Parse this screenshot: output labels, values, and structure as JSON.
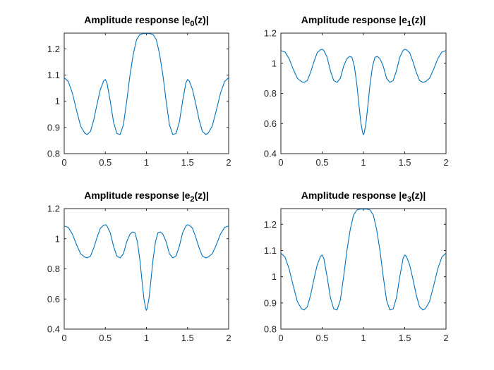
{
  "figure": {
    "line_color": "#0072BD",
    "axes_color": "#262626"
  },
  "chart_data": [
    {
      "type": "line",
      "title": "Amplitude response |e",
      "title_sub": "0",
      "title_suffix": "(z)|",
      "xlim": [
        0,
        2
      ],
      "ylim": [
        0.8,
        1.26
      ],
      "xticks": [
        "0",
        "0.5",
        "1",
        "1.5",
        "2"
      ],
      "xtick_values": [
        0,
        0.5,
        1,
        1.5,
        2
      ],
      "yticks": [
        "0.8",
        "0.9",
        "1",
        "1.1",
        "1.2"
      ],
      "ytick_values": [
        0.8,
        0.9,
        1.0,
        1.1,
        1.2
      ],
      "series": [
        {
          "x": [
            0,
            0.05,
            0.1,
            0.15,
            0.2,
            0.25,
            0.28,
            0.32,
            0.36,
            0.4,
            0.44,
            0.48,
            0.5,
            0.52,
            0.56,
            0.6,
            0.64,
            0.68,
            0.72,
            0.76,
            0.8,
            0.84,
            0.88,
            0.92,
            0.96,
            1.0,
            1.04,
            1.08,
            1.12,
            1.16,
            1.2,
            1.24,
            1.28,
            1.32,
            1.36,
            1.4,
            1.44,
            1.48,
            1.5,
            1.52,
            1.56,
            1.6,
            1.64,
            1.68,
            1.72,
            1.75,
            1.8,
            1.85,
            1.9,
            1.95,
            2.0
          ],
          "y": [
            1.09,
            1.075,
            1.03,
            0.965,
            0.905,
            0.878,
            0.873,
            0.885,
            0.93,
            0.99,
            1.045,
            1.078,
            1.083,
            1.07,
            1.0,
            0.92,
            0.877,
            0.873,
            0.91,
            1.0,
            1.1,
            1.18,
            1.235,
            1.255,
            1.258,
            1.258,
            1.258,
            1.255,
            1.235,
            1.18,
            1.1,
            1.0,
            0.91,
            0.873,
            0.877,
            0.92,
            1.0,
            1.07,
            1.083,
            1.078,
            1.045,
            0.99,
            0.93,
            0.885,
            0.873,
            0.878,
            0.905,
            0.965,
            1.03,
            1.075,
            1.09
          ]
        }
      ]
    },
    {
      "type": "line",
      "title": "Amplitude response |e",
      "title_sub": "1",
      "title_suffix": "(z)|",
      "xlim": [
        0,
        2
      ],
      "ylim": [
        0.4,
        1.2
      ],
      "xticks": [
        "0",
        "0.5",
        "1",
        "1.5",
        "2"
      ],
      "xtick_values": [
        0,
        0.5,
        1,
        1.5,
        2
      ],
      "yticks": [
        "0.4",
        "0.6",
        "0.8",
        "1",
        "1.2"
      ],
      "ytick_values": [
        0.4,
        0.6,
        0.8,
        1.0,
        1.2
      ],
      "series": [
        {
          "x": [
            0,
            0.05,
            0.1,
            0.15,
            0.2,
            0.25,
            0.28,
            0.32,
            0.36,
            0.4,
            0.44,
            0.48,
            0.5,
            0.52,
            0.56,
            0.6,
            0.64,
            0.68,
            0.72,
            0.76,
            0.8,
            0.83,
            0.86,
            0.89,
            0.92,
            0.95,
            0.97,
            0.99,
            1.0,
            1.01,
            1.03,
            1.05,
            1.08,
            1.11,
            1.14,
            1.17,
            1.2,
            1.24,
            1.28,
            1.32,
            1.36,
            1.4,
            1.44,
            1.48,
            1.5,
            1.52,
            1.56,
            1.6,
            1.64,
            1.68,
            1.72,
            1.75,
            1.8,
            1.85,
            1.9,
            1.95,
            2.0
          ],
          "y": [
            1.085,
            1.075,
            1.03,
            0.96,
            0.9,
            0.878,
            0.873,
            0.885,
            0.94,
            1.01,
            1.07,
            1.09,
            1.093,
            1.085,
            1.04,
            0.95,
            0.885,
            0.873,
            0.9,
            0.98,
            1.03,
            1.045,
            1.04,
            0.98,
            0.86,
            0.7,
            0.6,
            0.54,
            0.525,
            0.54,
            0.6,
            0.7,
            0.86,
            0.98,
            1.04,
            1.045,
            1.03,
            0.98,
            0.9,
            0.873,
            0.885,
            0.95,
            1.04,
            1.085,
            1.093,
            1.09,
            1.07,
            1.01,
            0.94,
            0.885,
            0.873,
            0.878,
            0.9,
            0.96,
            1.03,
            1.075,
            1.085
          ]
        }
      ]
    },
    {
      "type": "line",
      "title": "Amplitude response |e",
      "title_sub": "2",
      "title_suffix": "(z)|",
      "xlim": [
        0,
        2
      ],
      "ylim": [
        0.4,
        1.2
      ],
      "xticks": [
        "0",
        "0.5",
        "1",
        "1.5",
        "2"
      ],
      "xtick_values": [
        0,
        0.5,
        1,
        1.5,
        2
      ],
      "yticks": [
        "0.4",
        "0.6",
        "0.8",
        "1",
        "1.2"
      ],
      "ytick_values": [
        0.4,
        0.6,
        0.8,
        1.0,
        1.2
      ],
      "series": [
        {
          "x": [
            0,
            0.05,
            0.1,
            0.15,
            0.2,
            0.25,
            0.28,
            0.32,
            0.36,
            0.4,
            0.44,
            0.48,
            0.5,
            0.52,
            0.56,
            0.6,
            0.64,
            0.68,
            0.72,
            0.76,
            0.8,
            0.83,
            0.86,
            0.89,
            0.92,
            0.95,
            0.97,
            0.99,
            1.0,
            1.01,
            1.03,
            1.05,
            1.08,
            1.11,
            1.14,
            1.17,
            1.2,
            1.24,
            1.28,
            1.32,
            1.36,
            1.4,
            1.44,
            1.48,
            1.5,
            1.52,
            1.56,
            1.6,
            1.64,
            1.68,
            1.72,
            1.75,
            1.8,
            1.85,
            1.9,
            1.95,
            2.0
          ],
          "y": [
            1.085,
            1.075,
            1.03,
            0.96,
            0.9,
            0.878,
            0.873,
            0.885,
            0.94,
            1.01,
            1.07,
            1.09,
            1.093,
            1.085,
            1.04,
            0.95,
            0.885,
            0.873,
            0.9,
            0.98,
            1.03,
            1.045,
            1.04,
            0.98,
            0.86,
            0.7,
            0.6,
            0.54,
            0.525,
            0.54,
            0.6,
            0.7,
            0.86,
            0.98,
            1.04,
            1.045,
            1.03,
            0.98,
            0.9,
            0.873,
            0.885,
            0.95,
            1.04,
            1.085,
            1.093,
            1.09,
            1.07,
            1.01,
            0.94,
            0.885,
            0.873,
            0.878,
            0.9,
            0.96,
            1.03,
            1.075,
            1.085
          ]
        }
      ]
    },
    {
      "type": "line",
      "title": "Amplitude response |e",
      "title_sub": "3",
      "title_suffix": "(z)|",
      "xlim": [
        0,
        2
      ],
      "ylim": [
        0.8,
        1.26
      ],
      "xticks": [
        "0",
        "0.5",
        "1",
        "1.5",
        "2"
      ],
      "xtick_values": [
        0,
        0.5,
        1,
        1.5,
        2
      ],
      "yticks": [
        "0.8",
        "0.9",
        "1",
        "1.1",
        "1.2"
      ],
      "ytick_values": [
        0.8,
        0.9,
        1.0,
        1.1,
        1.2
      ],
      "series": [
        {
          "x": [
            0,
            0.05,
            0.1,
            0.15,
            0.2,
            0.25,
            0.28,
            0.32,
            0.36,
            0.4,
            0.44,
            0.48,
            0.5,
            0.52,
            0.56,
            0.6,
            0.64,
            0.68,
            0.72,
            0.76,
            0.8,
            0.84,
            0.88,
            0.92,
            0.96,
            1.0,
            1.04,
            1.08,
            1.12,
            1.16,
            1.2,
            1.24,
            1.28,
            1.32,
            1.36,
            1.4,
            1.44,
            1.48,
            1.5,
            1.52,
            1.56,
            1.6,
            1.64,
            1.68,
            1.72,
            1.75,
            1.8,
            1.85,
            1.9,
            1.95,
            2.0
          ],
          "y": [
            1.09,
            1.075,
            1.03,
            0.965,
            0.905,
            0.878,
            0.873,
            0.885,
            0.93,
            0.99,
            1.045,
            1.078,
            1.083,
            1.07,
            1.0,
            0.92,
            0.877,
            0.873,
            0.91,
            1.0,
            1.1,
            1.18,
            1.235,
            1.255,
            1.258,
            1.258,
            1.258,
            1.255,
            1.235,
            1.18,
            1.1,
            1.0,
            0.91,
            0.873,
            0.877,
            0.92,
            1.0,
            1.07,
            1.083,
            1.078,
            1.045,
            0.99,
            0.93,
            0.885,
            0.873,
            0.878,
            0.905,
            0.965,
            1.03,
            1.075,
            1.09
          ]
        }
      ]
    }
  ]
}
